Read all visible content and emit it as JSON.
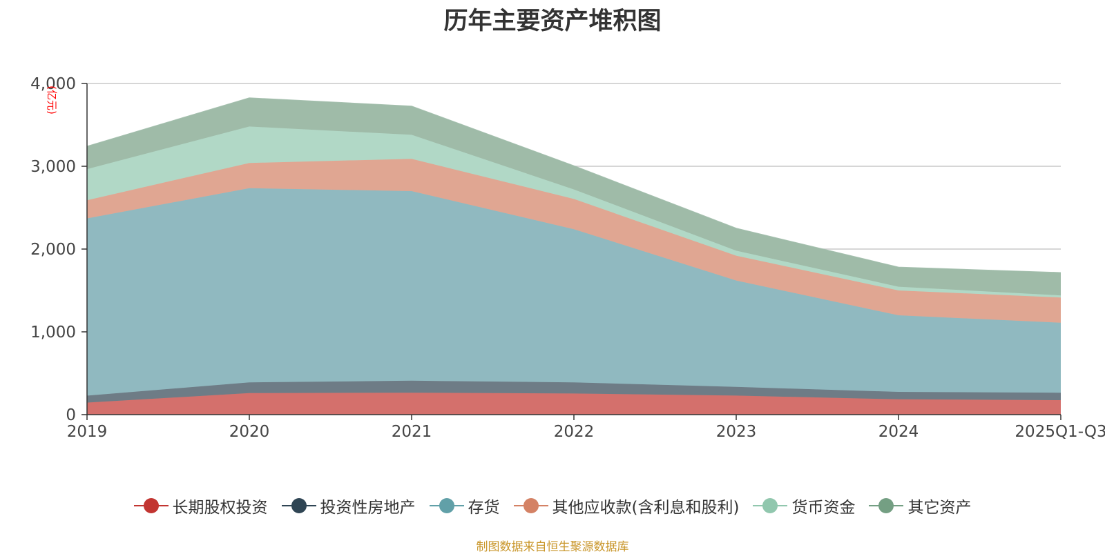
{
  "chart_data": {
    "type": "area",
    "stacked": true,
    "title": "历年主要资产堆积图",
    "ylabel": "(亿元)",
    "xlabel": "",
    "categories": [
      "2019",
      "2020",
      "2021",
      "2022",
      "2023",
      "2024",
      "2025Q1-Q3"
    ],
    "ylim": [
      0,
      4000
    ],
    "yticks": [
      0,
      1000,
      2000,
      3000,
      4000
    ],
    "ytick_labels": [
      "0",
      "1,000",
      "2,000",
      "3,000",
      "4,000"
    ],
    "grid": true,
    "legend_position": "bottom",
    "series": [
      {
        "name": "长期股权投资",
        "color": "#c23531",
        "fill": "#d4706c",
        "values": [
          145,
          260,
          265,
          255,
          230,
          185,
          175
        ]
      },
      {
        "name": "投资性房地产",
        "color": "#2f4554",
        "fill": "#6e7c86",
        "values": [
          85,
          130,
          145,
          135,
          105,
          90,
          90
        ]
      },
      {
        "name": "存货",
        "color": "#61a0a8",
        "fill": "#90b9c0",
        "values": [
          2140,
          2345,
          2290,
          1850,
          1285,
          925,
          845
        ]
      },
      {
        "name": "其他应收款(含利息和股利)",
        "color": "#d48265",
        "fill": "#e0a692",
        "values": [
          220,
          305,
          390,
          365,
          300,
          300,
          305
        ]
      },
      {
        "name": "货币资金",
        "color": "#91c7ae",
        "fill": "#b1d8c6",
        "values": [
          375,
          440,
          290,
          115,
          60,
          45,
          25
        ]
      },
      {
        "name": "其它资产",
        "color": "#749f83",
        "fill": "#9fbba8",
        "values": [
          275,
          345,
          345,
          285,
          270,
          235,
          275
        ]
      }
    ]
  },
  "footer": {
    "source": "制图数据来自恒生聚源数据库"
  }
}
